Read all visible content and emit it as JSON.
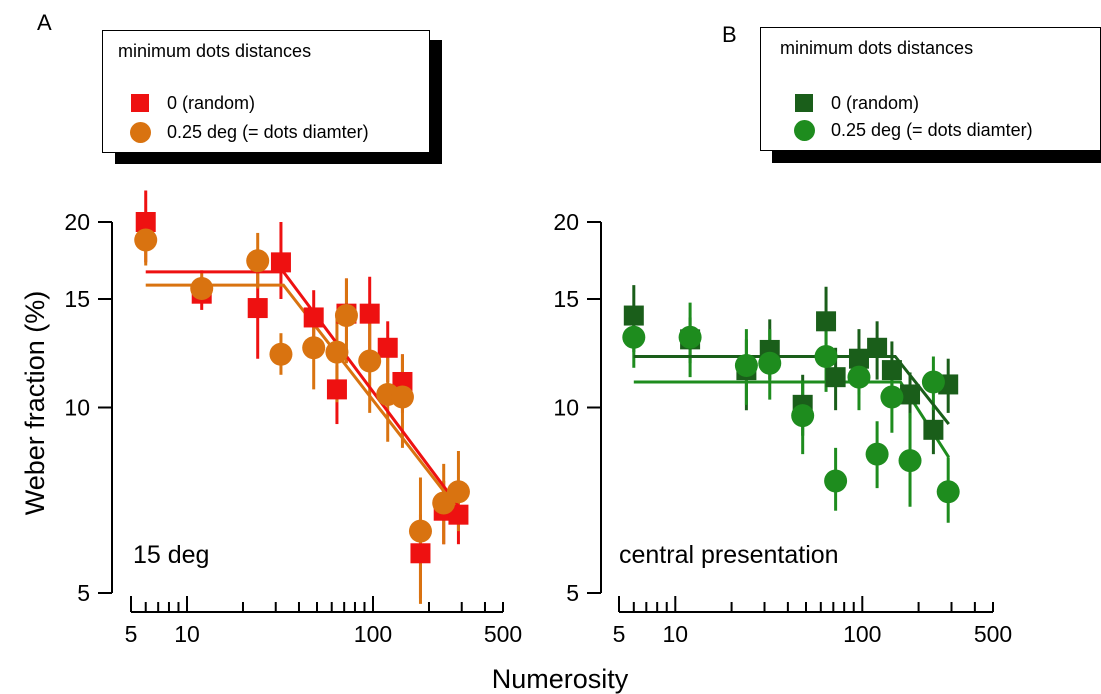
{
  "chart_data": [
    {
      "type": "scatter",
      "panel_label": "A",
      "annotation": "15 deg",
      "xlabel": "Numerosity",
      "ylabel": "Weber fraction (%)",
      "xscale": "log",
      "yscale": "log",
      "xlim": [
        5,
        500
      ],
      "ylim": [
        5,
        20
      ],
      "xticks": [
        5,
        10,
        100,
        500
      ],
      "xtick_labels": [
        "5",
        "10",
        "100",
        "500"
      ],
      "yticks": [
        5,
        10,
        15,
        20
      ],
      "ytick_labels": [
        "5",
        "10",
        "15",
        "20"
      ],
      "grid": false,
      "legend": {
        "title": "minimum dots distances",
        "placement": "top-left",
        "entries": [
          "0 (random)",
          "0.25 deg (= dots diamter)"
        ]
      },
      "series": [
        {
          "name": "0 (random)",
          "marker": "square",
          "color": "#ee1111",
          "x": [
            6,
            12,
            24,
            32,
            48,
            64,
            72,
            96,
            120,
            144,
            180,
            240,
            288
          ],
          "y": [
            20,
            15.3,
            14.5,
            17.2,
            14,
            10.7,
            14.2,
            14.2,
            12.5,
            11,
            5.8,
            6.8,
            6.7
          ],
          "err_low": [
            17.2,
            14.4,
            12,
            15,
            12.5,
            9.4,
            12.8,
            12.4,
            11,
            9.8,
            4.9,
            6,
            6
          ],
          "err_high": [
            22.5,
            16.3,
            17.3,
            20,
            15.5,
            11.7,
            16.2,
            16.3,
            13.8,
            12.2,
            6.7,
            7.6,
            7.5
          ],
          "fit": {
            "x": [
              6,
              33,
              290
            ],
            "y": [
              16.6,
              16.6,
              6.9
            ]
          }
        },
        {
          "name": "0.25 deg (= dots diamter)",
          "marker": "circle",
          "color": "#d97310",
          "x": [
            6,
            12,
            24,
            32,
            48,
            64,
            72,
            96,
            120,
            144,
            180,
            240,
            288
          ],
          "y": [
            18.7,
            15.6,
            17.3,
            12.2,
            12.5,
            12.3,
            14.1,
            11.9,
            10.5,
            10.4,
            6.3,
            7.0,
            7.3
          ],
          "err_low": [
            17,
            14.8,
            15.6,
            11.3,
            10.7,
            10.2,
            11.8,
            9.8,
            8.8,
            8.6,
            4.8,
            6.0,
            6.3
          ],
          "err_high": [
            20.2,
            16.7,
            19.2,
            13.2,
            14.3,
            14.3,
            16.2,
            13.9,
            12.5,
            12.2,
            7.7,
            8.1,
            8.5
          ],
          "fit": {
            "x": [
              6,
              33,
              290
            ],
            "y": [
              15.8,
              15.8,
              6.8
            ]
          }
        }
      ]
    },
    {
      "type": "scatter",
      "panel_label": "B",
      "annotation": "central presentation",
      "xlabel": "Numerosity",
      "ylabel": "",
      "xscale": "log",
      "yscale": "log",
      "xlim": [
        5,
        500
      ],
      "ylim": [
        5,
        20
      ],
      "xticks": [
        5,
        10,
        100,
        500
      ],
      "xtick_labels": [
        "5",
        "10",
        "100",
        "500"
      ],
      "yticks": [
        5,
        10,
        15,
        20
      ],
      "ytick_labels": [
        "5",
        "10",
        "15",
        "20"
      ],
      "grid": false,
      "legend": {
        "title": "minimum dots distances",
        "placement": "top-right",
        "entries": [
          "0 (random)",
          "0.25 deg (= dots diamter)"
        ]
      },
      "series": [
        {
          "name": "0 (random)",
          "marker": "square",
          "color": "#1a5e1a",
          "x": [
            6,
            12,
            24,
            32,
            48,
            64,
            72,
            96,
            120,
            144,
            180,
            240,
            288
          ],
          "y": [
            14.1,
            12.9,
            11.5,
            12.4,
            10.1,
            13.8,
            11.2,
            12,
            12.5,
            11.5,
            10.5,
            9.2,
            10.9
          ],
          "err_low": [
            12.3,
            11.8,
            9.9,
            11.1,
            9.0,
            11.8,
            9.9,
            10.5,
            11.1,
            10.2,
            9.6,
            8.4,
            9.8
          ],
          "err_high": [
            15.8,
            14,
            12.9,
            13.9,
            11.3,
            15.7,
            12.5,
            13.4,
            13.8,
            12.8,
            11.4,
            10,
            12.0
          ],
          "fit": {
            "x": [
              6,
              150,
              290
            ],
            "y": [
              12.1,
              12.1,
              9.4
            ]
          }
        },
        {
          "name": "0.25 deg (= dots diamter)",
          "marker": "circle",
          "color": "#1e8c1e",
          "x": [
            6,
            12,
            24,
            32,
            48,
            64,
            72,
            96,
            120,
            144,
            180,
            240,
            288
          ],
          "y": [
            13,
            13,
            11.7,
            11.8,
            9.7,
            12.1,
            7.6,
            11.2,
            8.4,
            10.4,
            8.2,
            11,
            7.3
          ],
          "err_low": [
            11.6,
            11.2,
            10.1,
            10.3,
            8.4,
            10.6,
            6.8,
            9.9,
            7.4,
            9.1,
            6.9,
            9.9,
            6.5
          ],
          "err_high": [
            14.5,
            14.8,
            13.4,
            13.4,
            11.0,
            13.7,
            8.6,
            12.4,
            9.5,
            11.8,
            9.8,
            12.1,
            8.3
          ],
          "fit": {
            "x": [
              6,
              160,
              290
            ],
            "y": [
              11,
              11,
              8.3
            ]
          }
        }
      ]
    }
  ]
}
